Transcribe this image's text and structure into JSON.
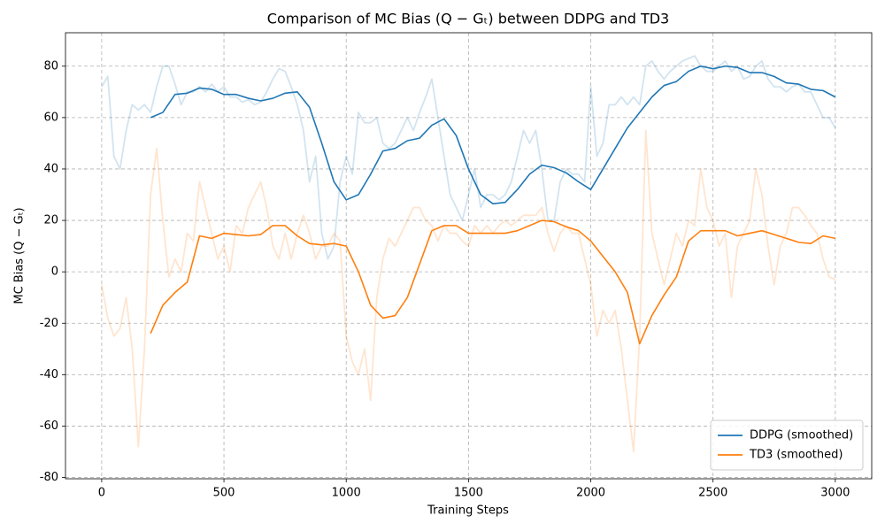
{
  "chart_data": {
    "type": "line",
    "title": "Comparison of MC Bias (Q − Gₜ) between DDPG and TD3",
    "xlabel": "Training Steps",
    "ylabel": "MC Bias (Q − Gₜ)",
    "xlim": [
      -148,
      3149
    ],
    "ylim": [
      -80.5,
      93
    ],
    "xticks": [
      0,
      500,
      1000,
      1500,
      2000,
      2500,
      3000
    ],
    "yticks": [
      -80,
      -60,
      -40,
      -20,
      0,
      20,
      40,
      60,
      80
    ],
    "grid": true,
    "legend": "lower right",
    "series": [
      {
        "color": "#1f77b4",
        "alpha": 0.2,
        "x": [
          0,
          25,
          50,
          75,
          100,
          125,
          150,
          175,
          200,
          225,
          250,
          275,
          300,
          325,
          350,
          375,
          400,
          425,
          450,
          475,
          500,
          525,
          550,
          575,
          600,
          625,
          650,
          675,
          700,
          725,
          750,
          775,
          800,
          825,
          850,
          875,
          900,
          925,
          950,
          975,
          1000,
          1025,
          1050,
          1075,
          1100,
          1125,
          1150,
          1175,
          1200,
          1225,
          1250,
          1275,
          1300,
          1325,
          1350,
          1375,
          1400,
          1425,
          1450,
          1475,
          1500,
          1525,
          1550,
          1575,
          1600,
          1625,
          1650,
          1675,
          1700,
          1725,
          1750,
          1775,
          1800,
          1825,
          1850,
          1875,
          1900,
          1925,
          1950,
          1975,
          2000,
          2025,
          2050,
          2075,
          2100,
          2125,
          2150,
          2175,
          2200,
          2225,
          2250,
          2275,
          2300,
          2325,
          2350,
          2375,
          2400,
          2425,
          2450,
          2475,
          2500,
          2525,
          2550,
          2575,
          2600,
          2625,
          2650,
          2675,
          2700,
          2725,
          2750,
          2775,
          2800,
          2825,
          2850,
          2875,
          2900,
          2925,
          2950,
          2975,
          3000
        ],
        "values": [
          72,
          76,
          45,
          40,
          55,
          65,
          63,
          65,
          62,
          72,
          80,
          80,
          73,
          65,
          70,
          70,
          72,
          70,
          73,
          70,
          72,
          68,
          68,
          66,
          67,
          65,
          66,
          70,
          75,
          79,
          78,
          72,
          65,
          55,
          35,
          45,
          15,
          5,
          10,
          35,
          45,
          38,
          62,
          58,
          58,
          60,
          50,
          48,
          50,
          55,
          60,
          55,
          62,
          68,
          75,
          60,
          45,
          30,
          25,
          20,
          30,
          40,
          25,
          30,
          30,
          28,
          30,
          35,
          45,
          55,
          50,
          55,
          40,
          20,
          20,
          35,
          40,
          38,
          38,
          35,
          72,
          45,
          50,
          65,
          65,
          68,
          65,
          68,
          65,
          80,
          82,
          78,
          75,
          78,
          80,
          82,
          83,
          84,
          80,
          78,
          78,
          80,
          82,
          78,
          80,
          75,
          76,
          80,
          82,
          75,
          72,
          72,
          70,
          72,
          73,
          70,
          70,
          65,
          60,
          60,
          56
        ]
      },
      {
        "color": "#ff7f0e",
        "alpha": 0.2,
        "x": [
          0,
          25,
          50,
          75,
          100,
          125,
          150,
          175,
          200,
          225,
          250,
          275,
          300,
          325,
          350,
          375,
          400,
          425,
          450,
          475,
          500,
          525,
          550,
          575,
          600,
          625,
          650,
          675,
          700,
          725,
          750,
          775,
          800,
          825,
          850,
          875,
          900,
          925,
          950,
          975,
          1000,
          1025,
          1050,
          1075,
          1100,
          1125,
          1150,
          1175,
          1200,
          1225,
          1250,
          1275,
          1300,
          1325,
          1350,
          1375,
          1400,
          1425,
          1450,
          1475,
          1500,
          1525,
          1550,
          1575,
          1600,
          1625,
          1650,
          1675,
          1700,
          1725,
          1750,
          1775,
          1800,
          1825,
          1850,
          1875,
          1900,
          1925,
          1950,
          1975,
          2000,
          2025,
          2050,
          2075,
          2100,
          2125,
          2150,
          2175,
          2200,
          2225,
          2250,
          2275,
          2300,
          2325,
          2350,
          2375,
          2400,
          2425,
          2450,
          2475,
          2500,
          2525,
          2550,
          2575,
          2600,
          2625,
          2650,
          2675,
          2700,
          2725,
          2750,
          2775,
          2800,
          2825,
          2850,
          2875,
          2900,
          2925,
          2950,
          2975,
          3000
        ],
        "values": [
          -5,
          -18,
          -25,
          -22,
          -10,
          -30,
          -68,
          -30,
          30,
          48,
          20,
          -2,
          5,
          0,
          15,
          12,
          35,
          25,
          15,
          5,
          10,
          0,
          18,
          15,
          25,
          30,
          35,
          25,
          10,
          5,
          15,
          5,
          15,
          22,
          15,
          5,
          10,
          10,
          15,
          12,
          -25,
          -35,
          -40,
          -30,
          -50,
          -10,
          5,
          13,
          10,
          15,
          20,
          25,
          25,
          20,
          18,
          12,
          18,
          15,
          15,
          12,
          10,
          18,
          15,
          18,
          15,
          18,
          20,
          18,
          20,
          22,
          22,
          22,
          25,
          15,
          8,
          15,
          18,
          15,
          15,
          5,
          -5,
          -25,
          -15,
          -20,
          -15,
          -30,
          -50,
          -70,
          -25,
          55,
          15,
          5,
          -5,
          5,
          15,
          10,
          20,
          18,
          40,
          25,
          20,
          10,
          15,
          -10,
          10,
          15,
          20,
          40,
          30,
          10,
          -5,
          10,
          15,
          25,
          25,
          22,
          18,
          15,
          5,
          -2,
          -3
        ]
      },
      {
        "name": "DDPG (smoothed)",
        "color": "#1f77b4",
        "x": [
          200,
          250,
          300,
          350,
          400,
          450,
          500,
          550,
          600,
          650,
          700,
          750,
          800,
          850,
          900,
          950,
          1000,
          1050,
          1100,
          1150,
          1200,
          1250,
          1300,
          1350,
          1400,
          1450,
          1500,
          1550,
          1600,
          1650,
          1700,
          1750,
          1800,
          1850,
          1900,
          1950,
          2000,
          2050,
          2100,
          2150,
          2200,
          2250,
          2300,
          2350,
          2400,
          2450,
          2500,
          2550,
          2600,
          2650,
          2700,
          2750,
          2800,
          2850,
          2900,
          2950,
          3000
        ],
        "values": [
          60,
          62,
          69,
          69.5,
          71.5,
          71,
          69,
          69,
          67.5,
          66.5,
          67.5,
          69.5,
          70,
          64,
          50,
          35,
          28,
          30,
          38,
          47,
          48,
          51,
          52,
          57,
          59.5,
          53,
          40,
          30,
          26.5,
          27,
          32,
          38,
          41.5,
          40.5,
          38.5,
          35,
          32,
          40,
          48,
          56,
          62,
          68,
          72.5,
          74,
          78,
          80,
          79,
          80,
          79.5,
          77.5,
          77.5,
          76,
          73.5,
          73,
          71,
          70.5,
          68
        ]
      },
      {
        "name": "TD3 (smoothed)",
        "color": "#ff7f0e",
        "x": [
          200,
          250,
          300,
          350,
          400,
          450,
          500,
          550,
          600,
          650,
          700,
          750,
          800,
          850,
          900,
          950,
          1000,
          1050,
          1100,
          1150,
          1200,
          1250,
          1300,
          1350,
          1400,
          1450,
          1500,
          1550,
          1600,
          1650,
          1700,
          1750,
          1800,
          1850,
          1900,
          1950,
          2000,
          2050,
          2100,
          2150,
          2200,
          2250,
          2300,
          2350,
          2400,
          2450,
          2500,
          2550,
          2600,
          2650,
          2700,
          2750,
          2800,
          2850,
          2900,
          2950,
          3000
        ],
        "values": [
          -24,
          -13,
          -8,
          -4,
          14,
          13,
          15,
          14.5,
          14,
          14.5,
          18,
          18,
          14,
          11,
          10.5,
          11,
          10,
          0,
          -13,
          -18,
          -17,
          -10,
          3,
          16,
          18,
          18,
          15,
          15,
          15,
          15,
          16,
          18,
          20,
          19.5,
          17.5,
          16,
          12,
          6,
          0,
          -8,
          -28,
          -17,
          -9,
          -2,
          12,
          16,
          16,
          16,
          14,
          15,
          16,
          14.5,
          13,
          11.5,
          11,
          14,
          13
        ]
      }
    ]
  }
}
